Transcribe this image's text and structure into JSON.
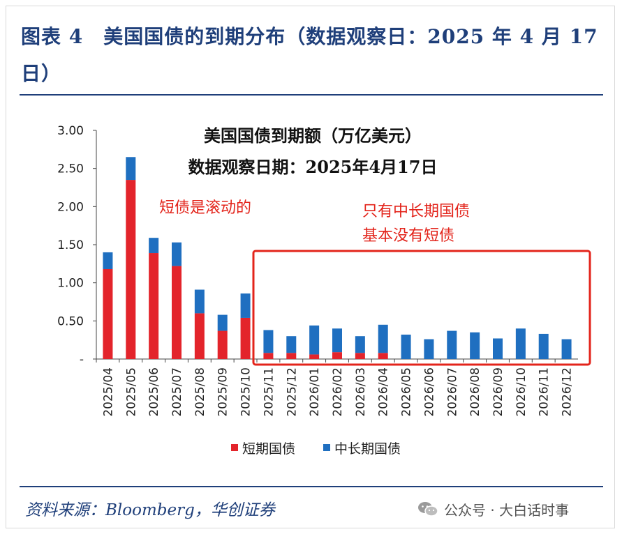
{
  "figure": {
    "title": "图表 4　美国国债的到期分布（数据观察日：2025 年 4 月 17 日）",
    "source": "资料来源：Bloomberg，华创证券"
  },
  "watermark": {
    "text": "公众号 · 大白话时事",
    "icon": "wechat-icon"
  },
  "chart_data": {
    "type": "bar",
    "stacked": true,
    "title_line1": "美国国债到期额（万亿美元）",
    "title_line2": "数据观察日期：2025年4月17日",
    "categories": [
      "2025/04",
      "2025/05",
      "2025/06",
      "2025/07",
      "2025/08",
      "2025/09",
      "2025/10",
      "2025/11",
      "2025/12",
      "2026/01",
      "2026/02",
      "2026/03",
      "2026/04",
      "2026/05",
      "2026/06",
      "2026/07",
      "2026/08",
      "2026/09",
      "2026/10",
      "2026/11",
      "2026/12"
    ],
    "series": [
      {
        "name": "短期国债",
        "color": "#e3242b",
        "values": [
          1.18,
          2.35,
          1.39,
          1.22,
          0.6,
          0.37,
          0.54,
          0.08,
          0.08,
          0.06,
          0.09,
          0.08,
          0.08,
          0.0,
          0.0,
          0.0,
          0.0,
          0.0,
          0.0,
          0.0,
          0.0
        ]
      },
      {
        "name": "中长期国债",
        "color": "#1f6fc0",
        "values": [
          0.22,
          0.3,
          0.2,
          0.31,
          0.31,
          0.21,
          0.32,
          0.3,
          0.22,
          0.38,
          0.31,
          0.22,
          0.37,
          0.32,
          0.26,
          0.37,
          0.35,
          0.27,
          0.4,
          0.33,
          0.26
        ]
      }
    ],
    "y_ticks": [
      "3.00",
      "2.50",
      "2.00",
      "1.50",
      "1.00",
      "0.50",
      "-"
    ],
    "ylim": [
      0,
      3.0
    ],
    "legend_position": "bottom-center",
    "annotations": [
      {
        "text": "短债是滚动的"
      },
      {
        "text": "只有中长期国债"
      },
      {
        "text": "基本没有短债"
      }
    ],
    "highlight_box": {
      "from": "2025/11",
      "to": "2026/12",
      "color": "#e3241b"
    }
  }
}
